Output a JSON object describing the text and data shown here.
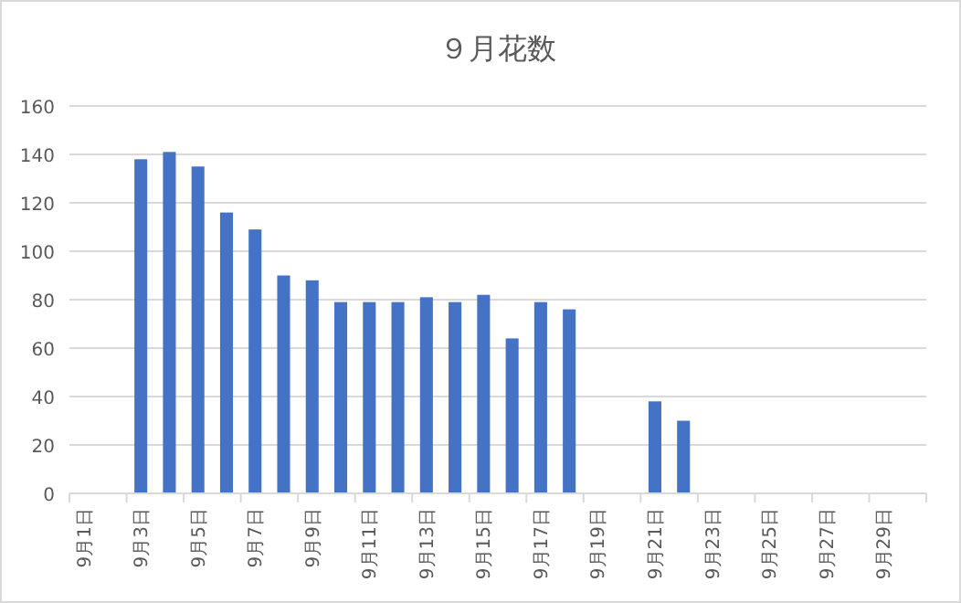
{
  "chart_data": {
    "type": "bar",
    "title": "９月花数",
    "categories": [
      "9月1日",
      null,
      "9月3日",
      null,
      "9月5日",
      null,
      "9月7日",
      null,
      "9月9日",
      null,
      "9月11日",
      null,
      "9月13日",
      null,
      "9月15日",
      null,
      "9月17日",
      null,
      "9月19日",
      null,
      "9月21日",
      null,
      "9月23日",
      null,
      "9月25日",
      null,
      "9月27日",
      null,
      "9月29日",
      null
    ],
    "values": [
      null,
      null,
      138,
      141,
      135,
      116,
      109,
      90,
      88,
      79,
      79,
      79,
      81,
      79,
      82,
      64,
      79,
      76,
      null,
      null,
      38,
      30,
      null,
      null,
      null,
      null,
      null,
      null,
      null,
      null
    ],
    "color": "#4472c4",
    "ylim": [
      0,
      160
    ],
    "yticks": [
      0,
      20,
      40,
      60,
      80,
      100,
      120,
      140,
      160
    ],
    "grid": "y"
  }
}
